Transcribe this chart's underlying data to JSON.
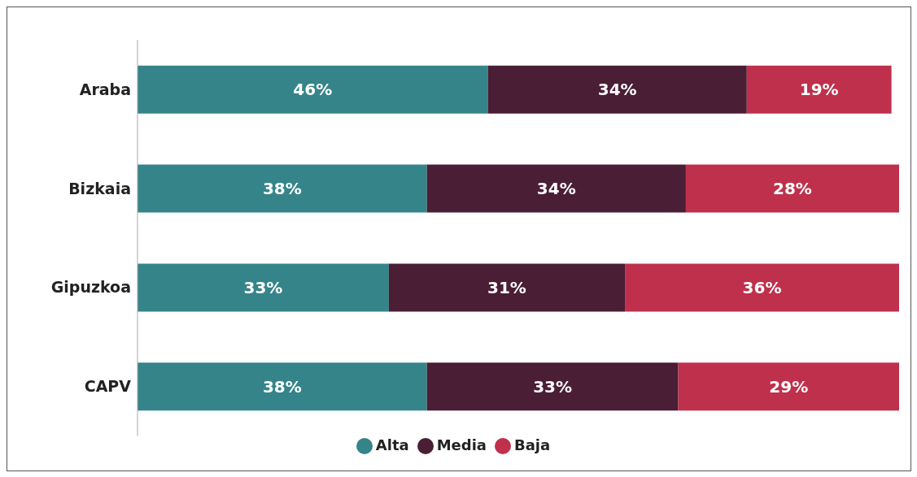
{
  "chart_data": {
    "type": "bar",
    "orientation": "horizontal",
    "stacked": true,
    "categories": [
      "Araba",
      "Bizkaia",
      "Gipuzkoa",
      "CAPV"
    ],
    "series": [
      {
        "name": "Alta",
        "color": "#358489",
        "values": [
          46,
          38,
          33,
          38
        ],
        "value_labels": [
          "46%",
          "38%",
          "33%",
          "38%"
        ]
      },
      {
        "name": "Media",
        "color": "#4a1e35",
        "values": [
          34,
          34,
          31,
          33
        ],
        "value_labels": [
          "34%",
          "34%",
          "31%",
          "33%"
        ]
      },
      {
        "name": "Baja",
        "color": "#bf304c",
        "values": [
          19,
          28,
          36,
          29
        ],
        "value_labels": [
          "19%",
          "28%",
          "36%",
          "29%"
        ]
      }
    ],
    "xlim": [
      0,
      100
    ],
    "tick_labels": "y",
    "legend": "bottom"
  }
}
